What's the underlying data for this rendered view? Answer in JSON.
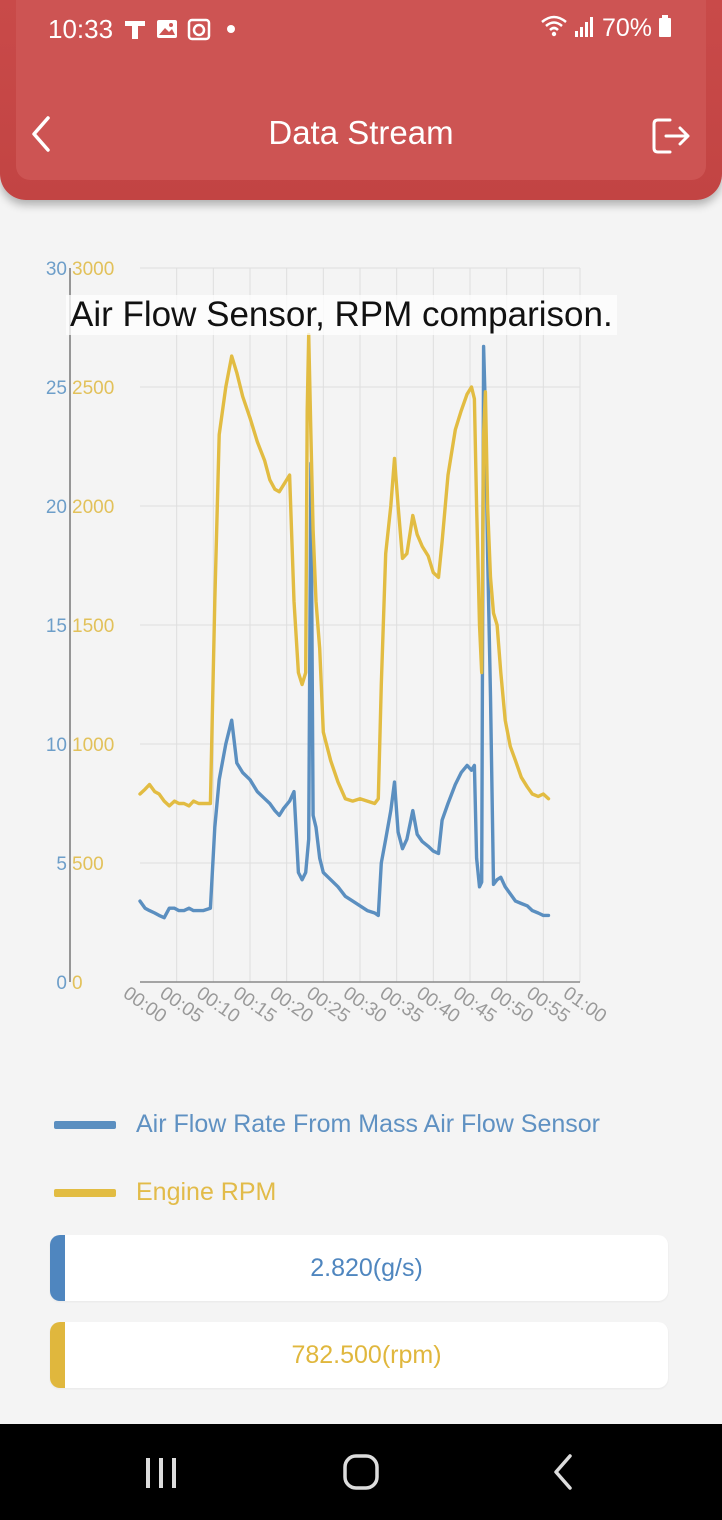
{
  "status_bar": {
    "time": "10:33",
    "battery": "70%",
    "left_icons": [
      "t-app-icon",
      "gallery-icon",
      "camera-app-icon",
      "dot-icon"
    ],
    "right_icons": [
      "wifi-icon",
      "signal-icon",
      "battery-icon"
    ]
  },
  "header": {
    "title": "Data Stream",
    "back_icon": "chevron-left-icon",
    "exit_icon": "exit-icon",
    "color": "#c94a49"
  },
  "caption": "Air Flow Sensor, RPM comparison.",
  "chart_data": {
    "type": "line",
    "x_ticks": [
      "00:00",
      "00:05",
      "00:10",
      "00:15",
      "00:20",
      "00:25",
      "00:30",
      "00:35",
      "00:40",
      "00:45",
      "00:50",
      "00:55",
      "01:00"
    ],
    "left_axis": {
      "ticks": [
        "0",
        "5",
        "10",
        "15",
        "20",
        "25",
        "30"
      ],
      "range": [
        0,
        30
      ],
      "color": "#6d9ec9"
    },
    "right_axis": {
      "ticks": [
        "0",
        "500",
        "1000",
        "1500",
        "2000",
        "2500",
        "3000"
      ],
      "range": [
        0,
        3000
      ],
      "color": "#e2c15a"
    },
    "grid": true,
    "series": [
      {
        "name": "Air Flow Rate From Mass Air Flow Sensor",
        "axis": "left",
        "color": "#5b8fc0",
        "points": [
          [
            0,
            3.4
          ],
          [
            0.7,
            3.1
          ],
          [
            1.3,
            3.0
          ],
          [
            2,
            2.9
          ],
          [
            2.6,
            2.8
          ],
          [
            3.3,
            2.7
          ],
          [
            4,
            3.1
          ],
          [
            4.7,
            3.1
          ],
          [
            5.3,
            3.0
          ],
          [
            6,
            3.0
          ],
          [
            6.7,
            3.1
          ],
          [
            7.3,
            3.0
          ],
          [
            8,
            3.0
          ],
          [
            8.6,
            3.0
          ],
          [
            9.6,
            3.1
          ],
          [
            10.2,
            6.5
          ],
          [
            10.8,
            8.5
          ],
          [
            11.7,
            10.0
          ],
          [
            12.5,
            11.0
          ],
          [
            13.2,
            9.2
          ],
          [
            14,
            8.8
          ],
          [
            15,
            8.5
          ],
          [
            16,
            8.0
          ],
          [
            17,
            7.7
          ],
          [
            17.7,
            7.5
          ],
          [
            18.4,
            7.2
          ],
          [
            19,
            7.0
          ],
          [
            19.6,
            7.3
          ],
          [
            20.4,
            7.6
          ],
          [
            21,
            8.0
          ],
          [
            21.6,
            4.6
          ],
          [
            22.1,
            4.3
          ],
          [
            22.6,
            4.6
          ],
          [
            23.0,
            6.0
          ],
          [
            23.3,
            21.8
          ],
          [
            23.6,
            7.0
          ],
          [
            24.0,
            6.5
          ],
          [
            24.5,
            5.2
          ],
          [
            25.0,
            4.6
          ],
          [
            26,
            4.3
          ],
          [
            27,
            4.0
          ],
          [
            28,
            3.6
          ],
          [
            29,
            3.4
          ],
          [
            30,
            3.2
          ],
          [
            31,
            3.0
          ],
          [
            32,
            2.9
          ],
          [
            32.5,
            2.8
          ],
          [
            32.9,
            5.0
          ],
          [
            33.5,
            6.0
          ],
          [
            34.2,
            7.2
          ],
          [
            34.7,
            8.4
          ],
          [
            35.2,
            6.3
          ],
          [
            35.8,
            5.6
          ],
          [
            36.4,
            6.0
          ],
          [
            37.2,
            7.2
          ],
          [
            37.8,
            6.2
          ],
          [
            38.5,
            5.9
          ],
          [
            39.3,
            5.7
          ],
          [
            40,
            5.5
          ],
          [
            40.7,
            5.4
          ],
          [
            41.2,
            6.8
          ],
          [
            42,
            7.5
          ],
          [
            43,
            8.3
          ],
          [
            43.8,
            8.8
          ],
          [
            44.6,
            9.1
          ],
          [
            45.2,
            8.9
          ],
          [
            45.6,
            9.1
          ],
          [
            45.9,
            5.2
          ],
          [
            46.3,
            4.0
          ],
          [
            46.6,
            4.2
          ],
          [
            46.85,
            26.7
          ],
          [
            47.1,
            24.0
          ],
          [
            47.4,
            18.0
          ],
          [
            47.8,
            12.0
          ],
          [
            48.2,
            4.1
          ],
          [
            48.7,
            4.3
          ],
          [
            49.2,
            4.4
          ],
          [
            49.8,
            4.0
          ],
          [
            50.5,
            3.7
          ],
          [
            51.2,
            3.4
          ],
          [
            52,
            3.3
          ],
          [
            52.8,
            3.2
          ],
          [
            53.5,
            3.0
          ],
          [
            54.3,
            2.9
          ],
          [
            55,
            2.8
          ],
          [
            55.7,
            2.8
          ]
        ]
      },
      {
        "name": "Engine RPM",
        "axis": "right",
        "color": "#e2bc42",
        "points": [
          [
            0,
            790
          ],
          [
            0.7,
            810
          ],
          [
            1.3,
            830
          ],
          [
            2,
            800
          ],
          [
            2.6,
            790
          ],
          [
            3.3,
            760
          ],
          [
            4,
            740
          ],
          [
            4.7,
            760
          ],
          [
            5.3,
            750
          ],
          [
            6,
            750
          ],
          [
            6.7,
            740
          ],
          [
            7.3,
            760
          ],
          [
            8,
            750
          ],
          [
            8.6,
            750
          ],
          [
            9.6,
            750
          ],
          [
            10.2,
            1600
          ],
          [
            10.8,
            2300
          ],
          [
            11.7,
            2500
          ],
          [
            12.5,
            2630
          ],
          [
            13.2,
            2560
          ],
          [
            14,
            2460
          ],
          [
            15,
            2370
          ],
          [
            16,
            2270
          ],
          [
            17,
            2190
          ],
          [
            17.7,
            2110
          ],
          [
            18.4,
            2070
          ],
          [
            19,
            2060
          ],
          [
            19.6,
            2090
          ],
          [
            20.4,
            2130
          ],
          [
            21,
            1600
          ],
          [
            21.6,
            1300
          ],
          [
            22.1,
            1250
          ],
          [
            22.6,
            1300
          ],
          [
            22.8,
            2400
          ],
          [
            23.0,
            2720
          ],
          [
            23.3,
            2300
          ],
          [
            23.6,
            1900
          ],
          [
            24.0,
            1600
          ],
          [
            24.5,
            1400
          ],
          [
            25.0,
            1050
          ],
          [
            26,
            930
          ],
          [
            27,
            840
          ],
          [
            28,
            770
          ],
          [
            29,
            760
          ],
          [
            30,
            770
          ],
          [
            31,
            760
          ],
          [
            32,
            750
          ],
          [
            32.5,
            770
          ],
          [
            32.9,
            1250
          ],
          [
            33.5,
            1800
          ],
          [
            34.2,
            2000
          ],
          [
            34.7,
            2200
          ],
          [
            35.2,
            2000
          ],
          [
            35.8,
            1780
          ],
          [
            36.4,
            1800
          ],
          [
            37.2,
            1960
          ],
          [
            37.8,
            1880
          ],
          [
            38.5,
            1830
          ],
          [
            39.3,
            1790
          ],
          [
            40,
            1720
          ],
          [
            40.7,
            1700
          ],
          [
            41.2,
            1850
          ],
          [
            42,
            2130
          ],
          [
            43,
            2320
          ],
          [
            43.8,
            2400
          ],
          [
            44.6,
            2470
          ],
          [
            45.2,
            2500
          ],
          [
            45.6,
            2450
          ],
          [
            45.9,
            2000
          ],
          [
            46.3,
            1500
          ],
          [
            46.6,
            1300
          ],
          [
            46.85,
            2300
          ],
          [
            47.1,
            2480
          ],
          [
            47.4,
            2000
          ],
          [
            47.8,
            1700
          ],
          [
            48.2,
            1550
          ],
          [
            48.7,
            1500
          ],
          [
            49.2,
            1300
          ],
          [
            49.8,
            1100
          ],
          [
            50.5,
            990
          ],
          [
            51.2,
            930
          ],
          [
            52,
            860
          ],
          [
            52.8,
            820
          ],
          [
            53.5,
            790
          ],
          [
            54.3,
            780
          ],
          [
            55,
            790
          ],
          [
            55.7,
            770
          ]
        ]
      }
    ]
  },
  "legend": [
    {
      "label": "Air Flow Rate From Mass Air Flow Sensor",
      "color": "#5b8fc0"
    },
    {
      "label": "Engine RPM",
      "color": "#e2bc42"
    }
  ],
  "values": [
    {
      "text": "2.820(g/s)",
      "color": "#4f86bf"
    },
    {
      "text": "782.500(rpm)",
      "color": "#e0b73d"
    }
  ],
  "nav_bar": {
    "recent_icon": "recent-apps-icon",
    "home_icon": "home-icon",
    "back_icon": "back-icon"
  }
}
